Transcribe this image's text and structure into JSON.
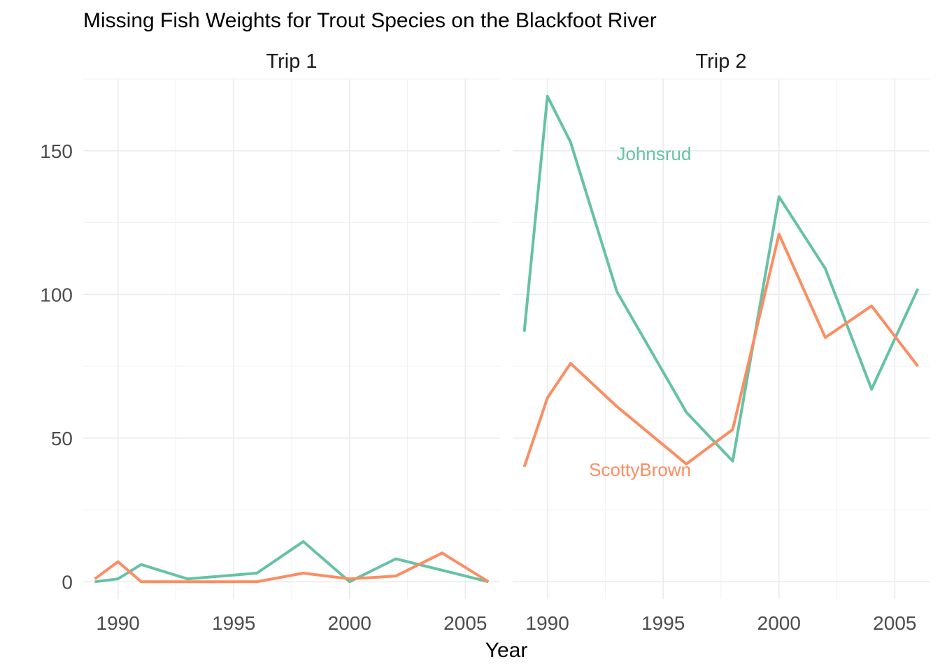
{
  "colors": {
    "Johnsrud": "#66c2a5",
    "ScottyBrown": "#fc8d62"
  },
  "chart_data": {
    "type": "line",
    "title": "Missing Fish Weights for Trout Species on the Blackfoot River",
    "xlabel": "Year",
    "ylabel": "",
    "xlim": [
      1988.5,
      2006.5
    ],
    "ylim": [
      -6,
      175
    ],
    "x_ticks": [
      1990,
      1995,
      2000,
      2005
    ],
    "y_ticks": [
      0,
      50,
      100,
      150
    ],
    "grid": true,
    "legend": "none",
    "panels": [
      {
        "label": "Trip 1",
        "series": [
          {
            "name": "Johnsrud",
            "x": [
              1989,
              1990,
              1991,
              1993,
              1996,
              1998,
              2000,
              2002,
              2006
            ],
            "y": [
              0,
              1,
              6,
              1,
              3,
              14,
              0,
              8,
              0
            ]
          },
          {
            "name": "ScottyBrown",
            "x": [
              1989,
              1990,
              1991,
              1993,
              1996,
              1998,
              2000,
              2002,
              2004,
              2006
            ],
            "y": [
              1,
              7,
              0,
              0,
              0,
              3,
              1,
              2,
              10,
              0
            ]
          }
        ],
        "annotations": []
      },
      {
        "label": "Trip 2",
        "series": [
          {
            "name": "Johnsrud",
            "x": [
              1989,
              1990,
              1991,
              1993,
              1996,
              1998,
              2000,
              2002,
              2004,
              2006
            ],
            "y": [
              87,
              169,
              153,
              101,
              59,
              42,
              134,
              109,
              67,
              102
            ]
          },
          {
            "name": "ScottyBrown",
            "x": [
              1989,
              1990,
              1991,
              1993,
              1996,
              1998,
              2000,
              2002,
              2004,
              2006
            ],
            "y": [
              40,
              64,
              76,
              61,
              41,
              53,
              121,
              85,
              96,
              75
            ]
          }
        ],
        "annotations": [
          {
            "text": "Johnsrud",
            "series": "Johnsrud",
            "x": 1994.6,
            "y": 149
          },
          {
            "text": "ScottyBrown",
            "series": "ScottyBrown",
            "x": 1994.0,
            "y": 39
          }
        ]
      }
    ]
  }
}
